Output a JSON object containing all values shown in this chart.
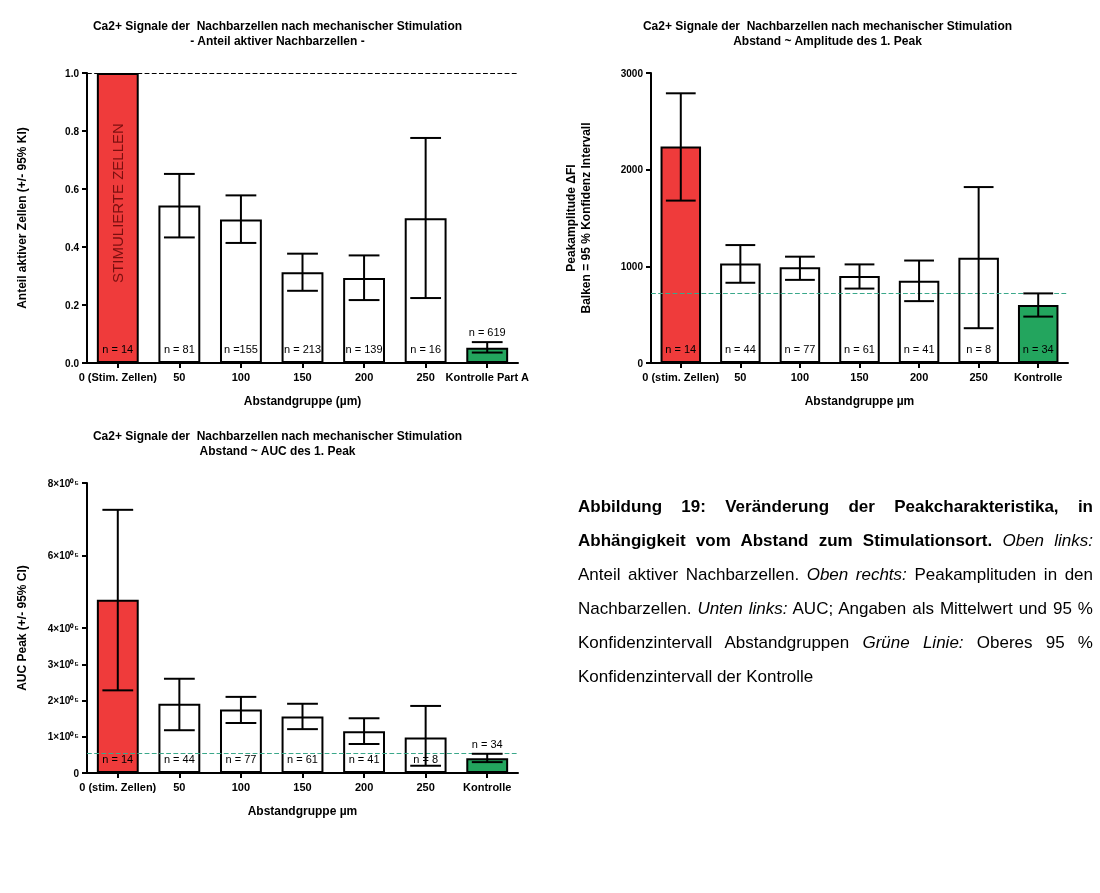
{
  "chart_data": [
    {
      "type": "bar",
      "title": "Ca2+ Signale der  Nachbarzellen nach mechanischer Stimulation",
      "subtitle": "- Anteil aktiver Nachbarzellen -",
      "xlabel": "Abstandgruppe (µm)",
      "ylabel": "Anteil aktiver Zellen (+/- 95% KI)",
      "categories": [
        "0 (Stim. Zellen)",
        "50",
        "100",
        "150",
        "200",
        "250",
        "Kontrolle Part A"
      ],
      "values": [
        1.0,
        0.543,
        0.495,
        0.313,
        0.293,
        0.499,
        0.053
      ],
      "colors": [
        "#ef3b3b",
        "#ffffff",
        "#ffffff",
        "#ffffff",
        "#ffffff",
        "#ffffff",
        "#23a55e"
      ],
      "errors": [
        null,
        [
          0.433,
          0.652
        ],
        [
          0.414,
          0.578
        ],
        [
          0.249,
          0.377
        ],
        [
          0.217,
          0.371
        ],
        [
          0.224,
          0.776
        ],
        [
          0.036,
          0.072
        ]
      ],
      "ylim": [
        0,
        1.0
      ],
      "yticks": [
        {
          "value": 0,
          "label": "0.0"
        },
        0.2,
        0.4,
        0.6,
        0.8,
        {
          "value": 1,
          "label": "1.0"
        }
      ],
      "ref_lines": [
        {
          "axis": "y",
          "value": 1.0,
          "color": "#000000",
          "line_style": "dashed"
        }
      ],
      "annotations": [
        "STIMULIERTE ZELLEN",
        "n = 14",
        "n = 81",
        "n =155",
        "n = 213",
        "n = 139",
        "n = 16",
        "n = 619"
      ]
    },
    {
      "type": "bar",
      "title": "Ca2+ Signale der  Nachbarzellen nach mechanischer Stimulation",
      "subtitle": "Abstand ~ Amplitude des 1. Peak",
      "xlabel": "Abstandgruppe µm",
      "ylabel": "Peakamplitude ΔFI\nBalken = 95 % Konfidenz Intervall",
      "categories": [
        "0 (stim. Zellen)",
        "50",
        "100",
        "150",
        "200",
        "250",
        "Kontrolle"
      ],
      "values": [
        2240,
        1030,
        990,
        900,
        850,
        1090,
        600
      ],
      "colors": [
        "#ef3b3b",
        "#ffffff",
        "#ffffff",
        "#ffffff",
        "#ffffff",
        "#ffffff",
        "#23a55e"
      ],
      "errors": [
        [
          1680,
          2790
        ],
        [
          830,
          1220
        ],
        [
          860,
          1100
        ],
        [
          770,
          1020
        ],
        [
          640,
          1060
        ],
        [
          360,
          1820
        ],
        [
          480,
          720
        ]
      ],
      "ylim": [
        0,
        3000
      ],
      "yticks": [
        0,
        1000,
        2000,
        3000
      ],
      "ref_lines": [
        {
          "axis": "y",
          "value": 720,
          "color": "#3aa88a",
          "line_style": "dashed"
        }
      ],
      "annotations": [
        "n = 14",
        "n = 44",
        "n = 77",
        "n = 61",
        "n = 41",
        "n = 8",
        "n = 34"
      ]
    },
    {
      "type": "bar",
      "title": "Ca2+ Signale der  Nachbarzellen nach mechanischer Stimulation",
      "subtitle": "Abstand ~ AUC des 1. Peak",
      "xlabel": "Abstandgruppe µm",
      "ylabel": "AUC Peak (+/- 95% CI)",
      "categories": [
        "0 (stim. Zellen)",
        "50",
        "100",
        "150",
        "200",
        "250",
        "Kontrolle"
      ],
      "values": [
        478000,
        191000,
        175000,
        156000,
        115000,
        98000,
        41000
      ],
      "colors": [
        "#ef3b3b",
        "#ffffff",
        "#ffffff",
        "#ffffff",
        "#ffffff",
        "#ffffff",
        "#23a55e"
      ],
      "errors": [
        [
          228000,
          726000
        ],
        [
          118000,
          260000
        ],
        [
          138000,
          210000
        ],
        [
          121000,
          191000
        ],
        [
          80000,
          151000
        ],
        [
          20000,
          185000
        ],
        [
          30000,
          53000
        ]
      ],
      "ylim": [
        0,
        800000
      ],
      "yticks": [
        0,
        {
          "value": 100000,
          "label": "1×10⁰⁵"
        },
        {
          "value": 200000,
          "label": "2×10⁰⁵"
        },
        {
          "value": 300000,
          "label": "3×10⁰⁵"
        },
        {
          "value": 400000,
          "label": "4×10⁰⁵"
        },
        {
          "value": 600000,
          "label": "6×10⁰⁵"
        },
        {
          "value": 800000,
          "label": "8×10⁰⁵"
        }
      ],
      "ref_lines": [
        {
          "axis": "y",
          "value": 54000,
          "color": "#3aa88a",
          "line_style": "dashed"
        }
      ],
      "annotations": [
        "n = 14",
        "n = 44",
        "n = 77",
        "n = 61",
        "n = 41",
        "n = 8",
        "n = 34"
      ]
    },
    {
      "type": "other",
      "title": "Abbildung 19: Veränderung der Peakcharakteristika, in Abhängigkeit vom Abstand zum Stimulationsort.",
      "annotations": [
        "Oben links: Anteil aktiver Nachbarzellen.",
        "Oben rechts: Peakamplituden in den Nachbarzellen.",
        "Unten links: AUC; Angaben als Mittelwert und 95 % Konfidenzintervall Abstandgruppen",
        "Grüne Linie: Oberes 95 % Konfidenzintervall der Kontrolle"
      ]
    }
  ]
}
